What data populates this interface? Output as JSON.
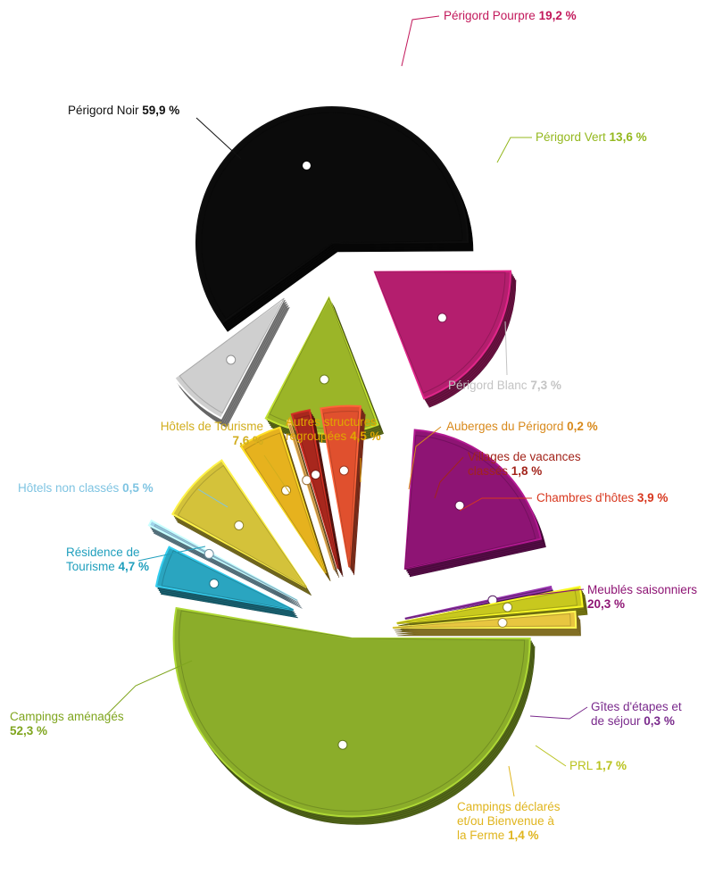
{
  "chart_data": [
    {
      "type": "pie",
      "slices": [
        {
          "name": "Périgord Noir",
          "value": 59.9,
          "display": "59,9 %",
          "color": "#0b0b0b",
          "label_color": "#111111"
        },
        {
          "name": "Périgord Pourpre",
          "value": 19.2,
          "display": "19,2 %",
          "color": "#b41e6e",
          "label_color": "#c2185b"
        },
        {
          "name": "Périgord Vert",
          "value": 13.6,
          "display": "13,6 %",
          "color": "#9bb528",
          "label_color": "#94b81e"
        },
        {
          "name": "Périgord Blanc",
          "value": 7.3,
          "display": "7,3 %",
          "color": "#cfcfcf",
          "label_color": "#c4c4c4"
        }
      ]
    },
    {
      "type": "pie",
      "slices": [
        {
          "name": "Campings aménagés",
          "value": 52.3,
          "display": "52,3 %",
          "color": "#8bad2a",
          "label_color": "#7fa51e"
        },
        {
          "name": "Résidence de Tourisme",
          "value": 4.7,
          "display": "4,7 %",
          "color": "#2aa5c0",
          "label_color": "#1f9fbd"
        },
        {
          "name": "Hôtels non classés",
          "value": 0.5,
          "display": "0,5 %",
          "color": "#9fd3ea",
          "label_color": "#7fc4e2"
        },
        {
          "name": "Hôtels de Tourisme",
          "value": 7.6,
          "display": "7,6 %",
          "color": "#d4c23a",
          "label_color": "#d1ad1d"
        },
        {
          "name": "Autres structures regroupées",
          "value": 4.5,
          "display": "4,5 %",
          "color": "#e6b21e",
          "label_color": "#e0a800"
        },
        {
          "name": "Auberges du Périgord",
          "value": 0.2,
          "display": "0,2 %",
          "color": "#e0a350",
          "label_color": "#d8891b"
        },
        {
          "name": "Villages de vacances classés",
          "value": 1.8,
          "display": "1,8 %",
          "color": "#a8271d",
          "label_color": "#a3241b"
        },
        {
          "name": "Chambres d'hôtes",
          "value": 3.9,
          "display": "3,9 %",
          "color": "#e0502e",
          "label_color": "#d8371e"
        },
        {
          "name": "Meublés saisonniers",
          "value": 20.3,
          "display": "20,3 %",
          "color": "#8e1474",
          "label_color": "#8e1474"
        },
        {
          "name": "Gîtes d'étapes et de séjour",
          "value": 0.3,
          "display": "0,3 %",
          "color": "#7a2a8c",
          "label_color": "#7a2a8c"
        },
        {
          "name": "PRL",
          "value": 1.7,
          "display": "1,7 %",
          "color": "#c8c81e",
          "label_color": "#b9c21e"
        },
        {
          "name": "Campings déclarés et/ou Bienvenue à la Ferme",
          "value": 1.4,
          "display": "1,4 %",
          "color": "#e8c640",
          "label_color": "#e0b51e"
        }
      ]
    }
  ],
  "labels": {
    "top": [
      {
        "lines": [
          "Périgord Noir"
        ],
        "value_line": 0,
        "value": "59,9 %"
      },
      {
        "lines": [
          "Périgord Pourpre"
        ],
        "value_line": 0,
        "value": "19,2 %"
      },
      {
        "lines": [
          "Périgord Vert"
        ],
        "value_line": 0,
        "value": "13,6 %"
      },
      {
        "lines": [
          "Périgord Blanc"
        ],
        "value_line": 0,
        "value": "7,3 %"
      }
    ],
    "bottom": [
      {
        "lines": [
          "Campings aménagés",
          ""
        ],
        "value_line": 1,
        "value": "52,3 %"
      },
      {
        "lines": [
          "Résidence de",
          "Tourisme"
        ],
        "value_line": 1,
        "value": "4,7 %"
      },
      {
        "lines": [
          "Hôtels non classés"
        ],
        "value_line": 0,
        "value": "0,5 %"
      },
      {
        "lines": [
          "Hôtels de Tourisme",
          ""
        ],
        "value_line": 1,
        "value": "7,6 %"
      },
      {
        "lines": [
          "Autres structures",
          "regroupées"
        ],
        "value_line": 1,
        "value": "4,5 %"
      },
      {
        "lines": [
          "Auberges du Périgord"
        ],
        "value_line": 0,
        "value": "0,2 %"
      },
      {
        "lines": [
          "Villages de vacances",
          "classés"
        ],
        "value_line": 1,
        "value": "1,8 %"
      },
      {
        "lines": [
          "Chambres d'hôtes"
        ],
        "value_line": 0,
        "value": "3,9 %"
      },
      {
        "lines": [
          "Meublés saisonniers",
          ""
        ],
        "value_line": 1,
        "value": "20,3 %"
      },
      {
        "lines": [
          "Gîtes d'étapes et",
          "de séjour"
        ],
        "value_line": 1,
        "value": "0,3 %"
      },
      {
        "lines": [
          "PRL"
        ],
        "value_line": 0,
        "value": "1,7 %"
      },
      {
        "lines": [
          "Campings déclarés",
          "et/ou Bienvenue à",
          "la Ferme"
        ],
        "value_line": 2,
        "value": "1,4 %"
      }
    ]
  }
}
